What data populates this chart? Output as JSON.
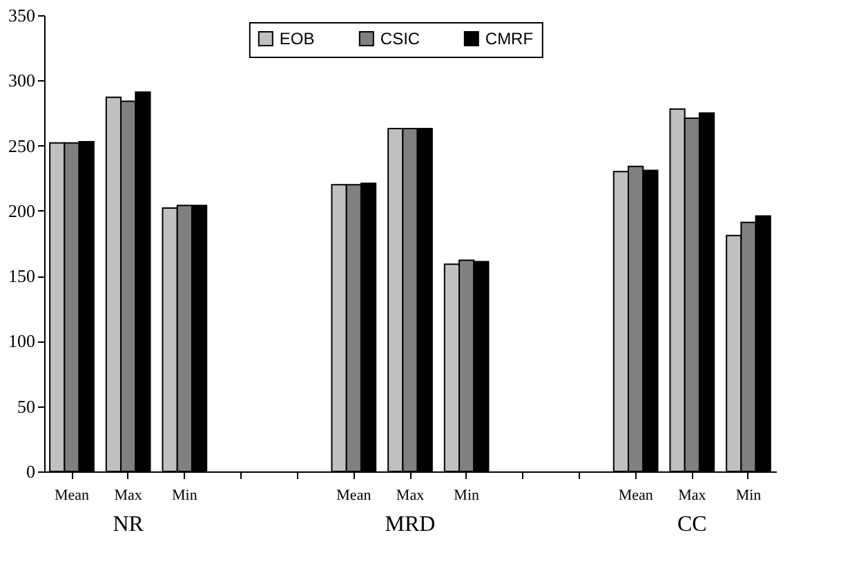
{
  "chart_data": {
    "type": "bar",
    "categories": [
      "Mean",
      "Max",
      "Min",
      null,
      null,
      "Mean",
      "Max",
      "Min",
      null,
      null,
      "Mean",
      "Max",
      "Min"
    ],
    "series": [
      {
        "name": "EOB",
        "color": "#c0c0c0",
        "values": [
          252,
          287,
          202,
          null,
          null,
          220,
          263,
          159,
          null,
          null,
          230,
          278,
          181
        ]
      },
      {
        "name": "CSIC",
        "color": "#808080",
        "values": [
          252,
          284,
          204,
          null,
          null,
          220,
          263,
          162,
          null,
          null,
          234,
          271,
          191
        ]
      },
      {
        "name": "CMRF",
        "color": "#000000",
        "values": [
          253,
          291,
          204,
          null,
          null,
          221,
          263,
          161,
          null,
          null,
          231,
          275,
          196
        ]
      }
    ],
    "annotations": [
      "NR",
      "MRD",
      "CC"
    ],
    "ylim": [
      0,
      350
    ],
    "yticks": [
      0,
      50,
      100,
      150,
      200,
      250,
      300,
      350
    ],
    "grid": false,
    "legend": "top"
  }
}
